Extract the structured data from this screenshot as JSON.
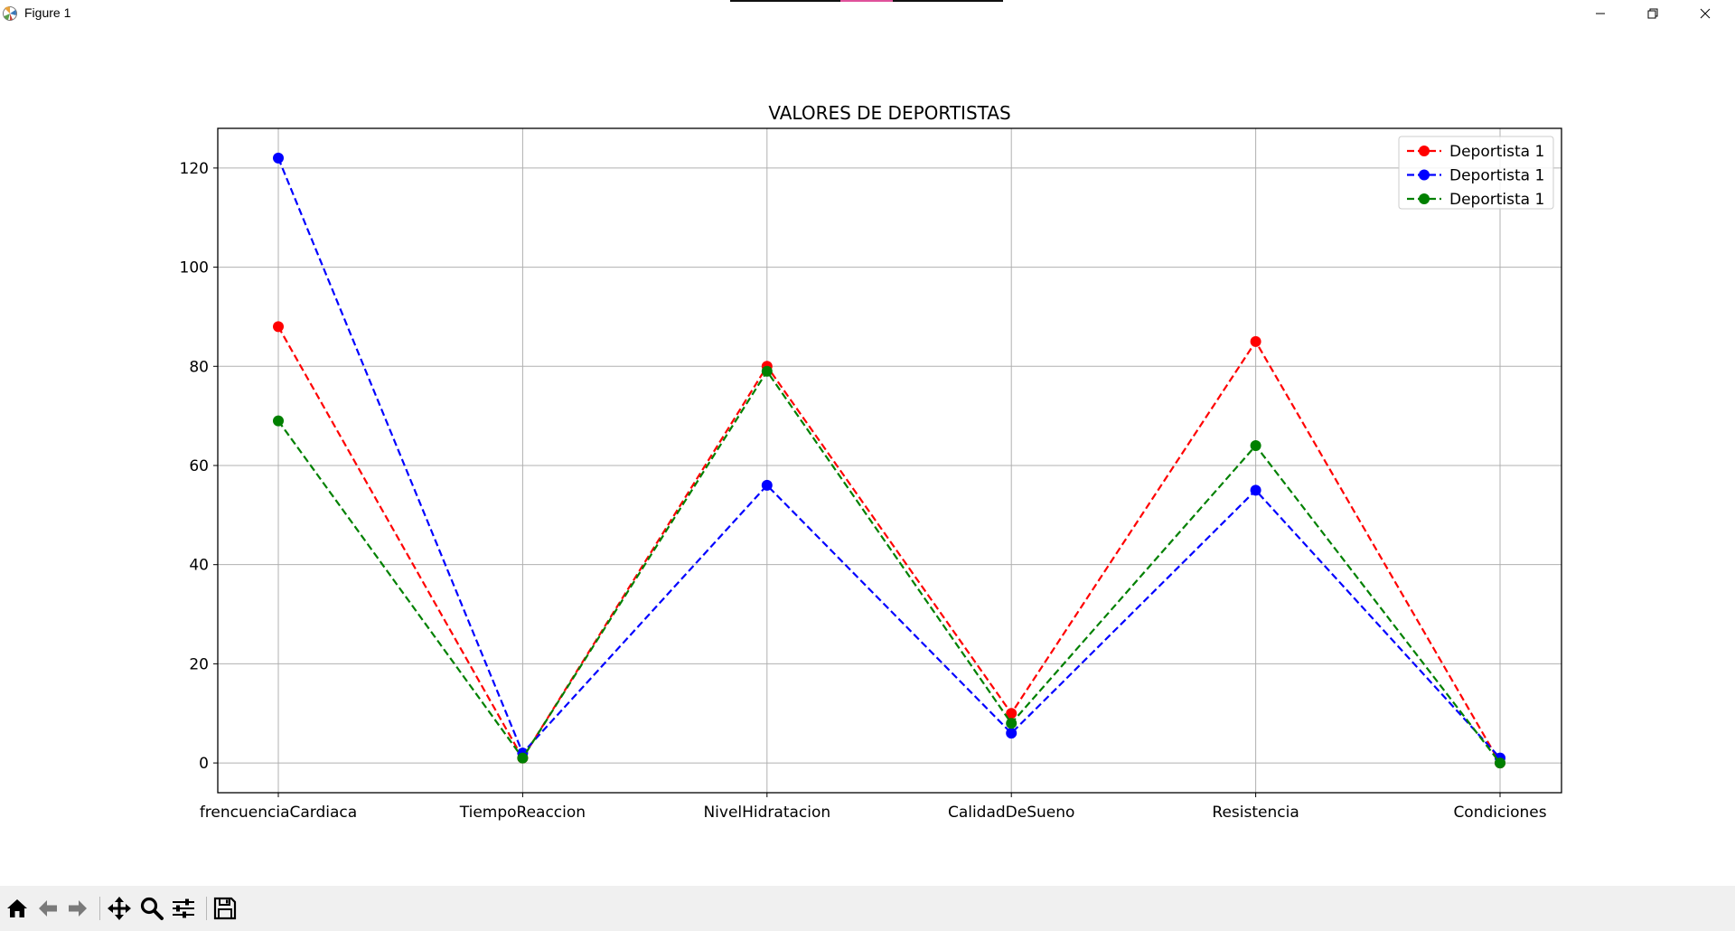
{
  "window": {
    "title": "Figure 1",
    "icons": {
      "app": "matplotlib-icon",
      "minimize": "minimize-icon",
      "maximize": "restore-icon",
      "close": "close-icon"
    }
  },
  "toolbar": {
    "tools": [
      {
        "name": "home-button",
        "icon": "home-icon"
      },
      {
        "name": "back-button",
        "icon": "arrow-left-icon"
      },
      {
        "name": "forward-button",
        "icon": "arrow-right-icon"
      },
      {
        "name": "pan-button",
        "icon": "move-icon"
      },
      {
        "name": "zoom-button",
        "icon": "magnifier-icon"
      },
      {
        "name": "configure-subplots-button",
        "icon": "sliders-icon"
      },
      {
        "name": "save-button",
        "icon": "floppy-disk-icon"
      }
    ]
  },
  "chart_data": {
    "type": "line",
    "title": "VALORES DE DEPORTISTAS",
    "xlabel": "",
    "ylabel": "",
    "categories": [
      "frencuenciaCardiaca",
      "TiempoReaccion",
      "NivelHidratacion",
      "CalidadDeSueno",
      "Resistencia",
      "Condiciones"
    ],
    "yticks": [
      0,
      20,
      40,
      60,
      80,
      100,
      120
    ],
    "ylim": [
      -6,
      128
    ],
    "grid": true,
    "legend_position": "top-right",
    "line_style": "dashed",
    "marker": "circle",
    "series": [
      {
        "name": "Deportista 1",
        "color": "#ff0000",
        "values": [
          88,
          1,
          80,
          10,
          85,
          0
        ]
      },
      {
        "name": "Deportista 1",
        "color": "#0000ff",
        "values": [
          122,
          2,
          56,
          6,
          55,
          1
        ]
      },
      {
        "name": "Deportista 1",
        "color": "#008000",
        "values": [
          69,
          1,
          79,
          8,
          64,
          0
        ]
      }
    ]
  }
}
